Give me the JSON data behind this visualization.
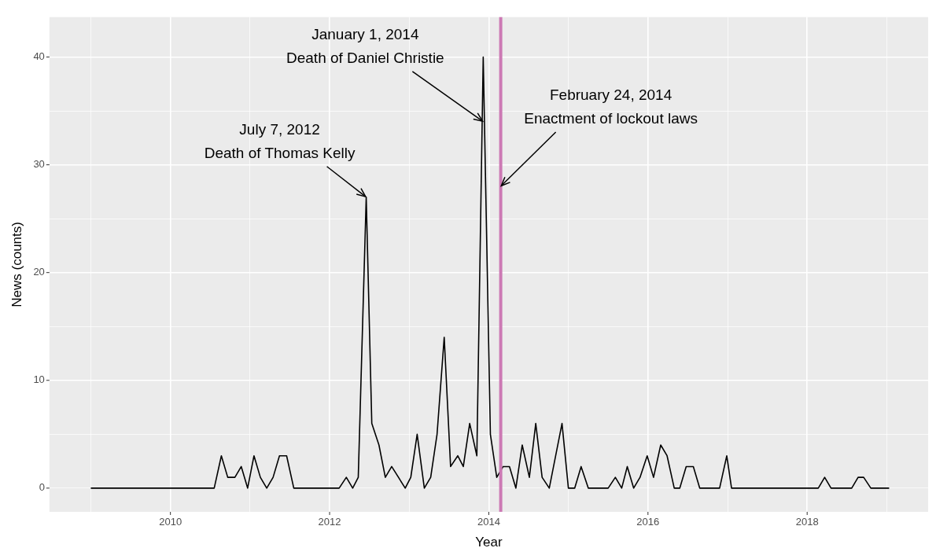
{
  "chart_data": {
    "type": "line",
    "xlabel": "Year",
    "ylabel": "News (counts)",
    "x": [
      2009.0,
      2010.55,
      2010.64,
      2010.72,
      2010.81,
      2010.89,
      2010.97,
      2011.05,
      2011.13,
      2011.21,
      2011.29,
      2011.37,
      2011.46,
      2011.55,
      2012.12,
      2012.21,
      2012.29,
      2012.36,
      2012.46,
      2012.53,
      2012.62,
      2012.7,
      2012.78,
      2012.95,
      2013.02,
      2013.1,
      2013.19,
      2013.27,
      2013.35,
      2013.44,
      2013.52,
      2013.61,
      2013.68,
      2013.76,
      2013.85,
      2013.93,
      2014.02,
      2014.1,
      2014.18,
      2014.26,
      2014.34,
      2014.42,
      2014.51,
      2014.59,
      2014.67,
      2014.76,
      2014.92,
      2015.0,
      2015.08,
      2015.16,
      2015.25,
      2015.5,
      2015.59,
      2015.67,
      2015.74,
      2015.82,
      2015.9,
      2015.99,
      2016.07,
      2016.16,
      2016.24,
      2016.33,
      2016.4,
      2016.48,
      2016.57,
      2016.65,
      2016.9,
      2016.99,
      2017.05,
      2018.14,
      2018.22,
      2018.3,
      2018.56,
      2018.64,
      2018.71,
      2018.8,
      2019.03
    ],
    "series": [
      {
        "color": "#000000",
        "values": [
          0,
          0,
          3,
          1,
          1,
          2,
          0,
          3,
          1,
          0,
          1,
          3,
          3,
          0,
          0,
          1,
          0,
          1,
          27,
          6,
          4,
          1,
          2,
          0,
          1,
          5,
          0,
          1,
          5,
          14,
          2,
          3,
          2,
          6,
          3,
          40,
          5,
          1,
          2,
          2,
          0,
          4,
          1,
          6,
          1,
          0,
          6,
          0,
          0,
          2,
          0,
          0,
          1,
          0,
          2,
          0,
          1,
          3,
          1,
          4,
          3,
          0,
          0,
          2,
          2,
          0,
          0,
          3,
          0,
          0,
          1,
          0,
          0,
          1,
          1,
          0,
          0
        ]
      }
    ],
    "xlim": [
      2008.48,
      2019.52
    ],
    "ylim": [
      -2.2,
      43.7
    ],
    "xticks": [
      {
        "value": 2009,
        "label": null
      },
      2010,
      {
        "value": 2011,
        "label": null
      },
      2012,
      {
        "value": 2013,
        "label": null
      },
      2014,
      {
        "value": 2015,
        "label": null
      },
      2016,
      {
        "value": 2017,
        "label": null
      },
      2018,
      {
        "value": 2019,
        "label": null
      }
    ],
    "yticks": [
      0,
      {
        "value": 5,
        "label": null
      },
      10,
      {
        "value": 15,
        "label": null
      },
      20,
      {
        "value": 25,
        "label": null
      },
      30,
      {
        "value": 35,
        "label": null
      },
      40
    ],
    "grid": true,
    "legend": false,
    "marker": "none",
    "line_style": "solid",
    "ref_lines": [
      {
        "axis": "x",
        "value": 2014.15,
        "color": "#cc79b4",
        "line_style": "solid"
      }
    ],
    "annotations": [
      {
        "text": "July 7, 2012\nDeath of Thomas Kelly",
        "x": 2012.46,
        "y": 27
      },
      {
        "text": "January 1, 2014\nDeath of Daniel Christie",
        "x": 2013.93,
        "y": 34
      },
      {
        "text": "February 24, 2014\nEnactment of lockout laws",
        "x": 2014.15,
        "y": 28
      }
    ]
  }
}
